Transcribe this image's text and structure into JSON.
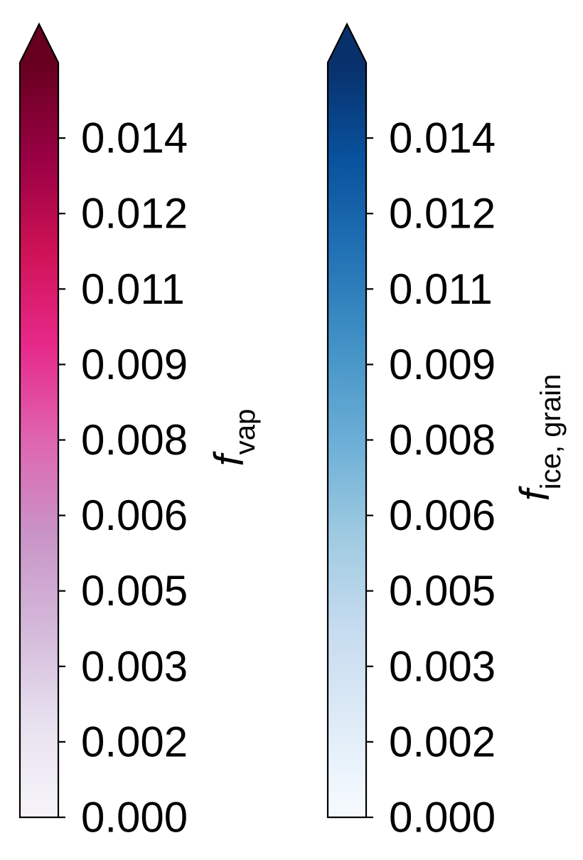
{
  "chart_data": [
    {
      "type": "colorbar",
      "label_main": "f",
      "label_sub": "vap",
      "ticks": [
        "0.000",
        "0.002",
        "0.003",
        "0.005",
        "0.006",
        "0.008",
        "0.009",
        "0.011",
        "0.012",
        "0.014"
      ],
      "tick_values": [
        0.0,
        0.00155,
        0.0031,
        0.00465,
        0.0062,
        0.00775,
        0.0093,
        0.01085,
        0.0124,
        0.01395
      ],
      "vmin": 0.0,
      "vmax": 0.0155,
      "extend": "max",
      "colormap": [
        "#f7f4f9",
        "#e7e1ef",
        "#d4b9da",
        "#c994c7",
        "#df65b0",
        "#e7298a",
        "#ce1256",
        "#980043",
        "#67001f"
      ],
      "over_color": "#67001f"
    },
    {
      "type": "colorbar",
      "label_main": "f",
      "label_sub": "ice, grain",
      "ticks": [
        "0.000",
        "0.002",
        "0.003",
        "0.005",
        "0.006",
        "0.008",
        "0.009",
        "0.011",
        "0.012",
        "0.014"
      ],
      "tick_values": [
        0.0,
        0.00155,
        0.0031,
        0.00465,
        0.0062,
        0.00775,
        0.0093,
        0.01085,
        0.0124,
        0.01395
      ],
      "vmin": 0.0,
      "vmax": 0.0155,
      "extend": "max",
      "colormap": [
        "#f7fbff",
        "#deebf7",
        "#c6dbef",
        "#9ecae1",
        "#6baed6",
        "#4292c6",
        "#2171b5",
        "#08519c",
        "#08306b"
      ],
      "over_color": "#08306b"
    }
  ]
}
